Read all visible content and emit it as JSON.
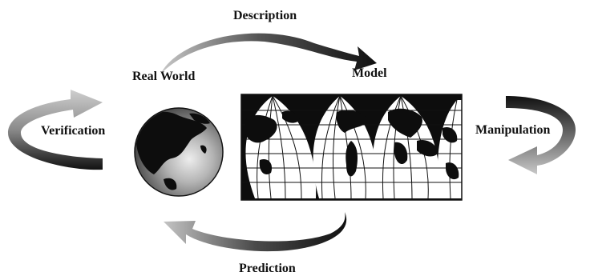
{
  "labels": {
    "description": "Description",
    "real_world": "Real World",
    "model": "Model",
    "verification": "Verification",
    "manipulation": "Manipulation",
    "prediction": "Prediction"
  },
  "colors": {
    "ink": "#111111",
    "arrow_dark": "#1a1a1a",
    "arrow_mid": "#555555",
    "arrow_light": "#bdbdbd",
    "ocean": "#ffffff",
    "land": "#0d0d0d"
  },
  "icons": {
    "real_world": "globe-icon",
    "model": "world-map-icon"
  }
}
